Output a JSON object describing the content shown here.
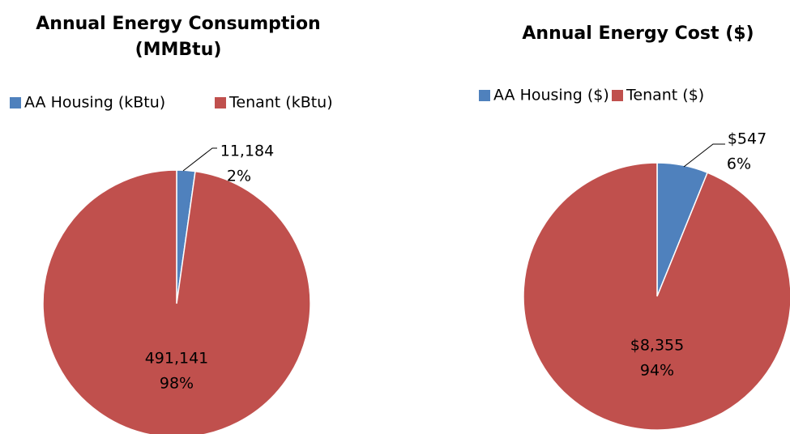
{
  "chart_data": [
    {
      "type": "pie",
      "title": "Annual Energy Consumption (MMBtu)",
      "categories": [
        "AA Housing (kBtu)",
        "Tenant (kBtu)"
      ],
      "values": [
        11184,
        491141
      ],
      "value_labels": [
        "11,184",
        "491,141"
      ],
      "percent_labels": [
        "2%",
        "98%"
      ],
      "colors": [
        "#4f81bd",
        "#c0504d"
      ],
      "legend": "top"
    },
    {
      "type": "pie",
      "title": "Annual Energy Cost ($)",
      "categories": [
        "AA Housing ($)",
        "Tenant ($)"
      ],
      "values": [
        547,
        8355
      ],
      "value_labels": [
        "$547",
        "$8,355"
      ],
      "percent_labels": [
        "6%",
        "94%"
      ],
      "colors": [
        "#4f81bd",
        "#c0504d"
      ],
      "legend": "top"
    }
  ]
}
